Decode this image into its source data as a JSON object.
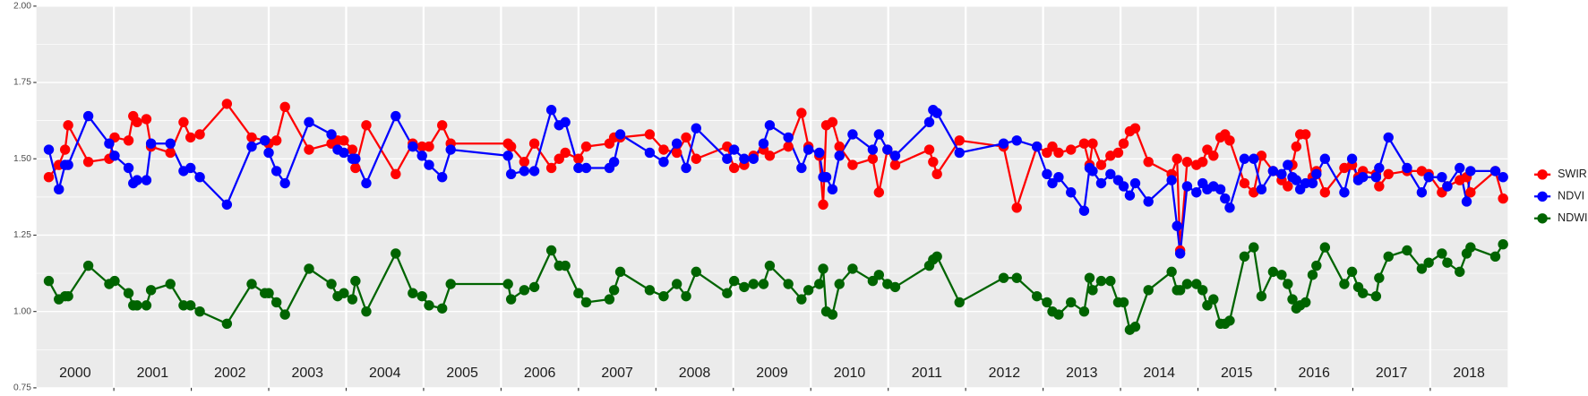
{
  "chart_data": {
    "type": "line",
    "x": [
      2000.16,
      2000.29,
      2000.37,
      2000.41,
      2000.67,
      2000.94,
      2001.01,
      2001.19,
      2001.25,
      2001.3,
      2001.42,
      2001.48,
      2001.73,
      2001.9,
      2001.99,
      2002.11,
      2002.46,
      2002.78,
      2002.95,
      2003.0,
      2003.1,
      2003.21,
      2003.52,
      2003.81,
      2003.89,
      2003.97,
      2004.08,
      2004.12,
      2004.26,
      2004.64,
      2004.86,
      2004.98,
      2005.07,
      2005.24,
      2005.35,
      2006.09,
      2006.13,
      2006.3,
      2006.43,
      2006.65,
      2006.75,
      2006.83,
      2007.0,
      2007.1,
      2007.4,
      2007.46,
      2007.54,
      2007.92,
      2008.1,
      2008.27,
      2008.39,
      2008.52,
      2008.92,
      2009.01,
      2009.14,
      2009.26,
      2009.39,
      2009.47,
      2009.71,
      2009.88,
      2009.97,
      2010.11,
      2010.16,
      2010.2,
      2010.28,
      2010.37,
      2010.54,
      2010.8,
      2010.88,
      2010.99,
      2011.09,
      2011.53,
      2011.58,
      2011.63,
      2011.92,
      2012.49,
      2012.66,
      2012.92,
      2013.05,
      2013.12,
      2013.2,
      2013.36,
      2013.53,
      2013.6,
      2013.64,
      2013.75,
      2013.87,
      2013.97,
      2014.04,
      2014.12,
      2014.19,
      2014.36,
      2014.66,
      2014.73,
      2014.77,
      2014.86,
      2014.98,
      2015.06,
      2015.12,
      2015.2,
      2015.29,
      2015.35,
      2015.41,
      2015.6,
      2015.72,
      2015.82,
      2015.97,
      2016.08,
      2016.16,
      2016.22,
      2016.27,
      2016.32,
      2016.39,
      2016.48,
      2016.53,
      2016.64,
      2016.89,
      2016.99,
      2017.07,
      2017.13,
      2017.3,
      2017.34,
      2017.46,
      2017.7,
      2017.89,
      2017.98,
      2018.15,
      2018.22,
      2018.38,
      2018.47,
      2018.52,
      2018.84,
      2018.94
    ],
    "series": [
      {
        "name": "SWIR",
        "color": "#ff0000",
        "values": [
          1.44,
          1.48,
          1.53,
          1.61,
          1.49,
          1.5,
          1.57,
          1.56,
          1.64,
          1.62,
          1.63,
          1.54,
          1.52,
          1.62,
          1.57,
          1.58,
          1.68,
          1.57,
          1.56,
          1.55,
          1.56,
          1.67,
          1.53,
          1.55,
          1.56,
          1.56,
          1.53,
          1.47,
          1.61,
          1.45,
          1.55,
          1.54,
          1.54,
          1.61,
          1.55,
          1.55,
          1.54,
          1.49,
          1.55,
          1.47,
          1.5,
          1.52,
          1.5,
          1.54,
          1.55,
          1.57,
          1.57,
          1.58,
          1.53,
          1.52,
          1.57,
          1.5,
          1.54,
          1.47,
          1.48,
          1.51,
          1.53,
          1.51,
          1.54,
          1.65,
          1.54,
          1.51,
          1.35,
          1.61,
          1.62,
          1.54,
          1.48,
          1.5,
          1.39,
          1.53,
          1.48,
          1.53,
          1.49,
          1.45,
          1.56,
          1.54,
          1.34,
          1.54,
          1.52,
          1.54,
          1.52,
          1.53,
          1.55,
          1.48,
          1.55,
          1.48,
          1.51,
          1.52,
          1.55,
          1.59,
          1.6,
          1.49,
          1.45,
          1.5,
          1.2,
          1.49,
          1.48,
          1.49,
          1.53,
          1.51,
          1.57,
          1.58,
          1.56,
          1.42,
          1.39,
          1.51,
          1.46,
          1.43,
          1.41,
          1.48,
          1.54,
          1.58,
          1.58,
          1.44,
          1.46,
          1.39,
          1.47,
          1.48,
          1.44,
          1.46,
          1.45,
          1.41,
          1.45,
          1.46,
          1.46,
          1.45,
          1.39,
          1.41,
          1.43,
          1.44,
          1.39,
          1.46,
          1.37
        ]
      },
      {
        "name": "NDVI",
        "color": "#0000ff",
        "values": [
          1.53,
          1.4,
          1.48,
          1.48,
          1.64,
          1.55,
          1.51,
          1.47,
          1.42,
          1.43,
          1.43,
          1.55,
          1.55,
          1.46,
          1.47,
          1.44,
          1.35,
          1.54,
          1.56,
          1.52,
          1.46,
          1.42,
          1.62,
          1.58,
          1.53,
          1.52,
          1.5,
          1.5,
          1.42,
          1.64,
          1.54,
          1.51,
          1.48,
          1.44,
          1.53,
          1.51,
          1.45,
          1.46,
          1.46,
          1.66,
          1.61,
          1.62,
          1.47,
          1.47,
          1.47,
          1.49,
          1.58,
          1.52,
          1.49,
          1.55,
          1.47,
          1.6,
          1.5,
          1.53,
          1.5,
          1.5,
          1.55,
          1.61,
          1.57,
          1.47,
          1.53,
          1.52,
          1.44,
          1.44,
          1.4,
          1.51,
          1.58,
          1.53,
          1.58,
          1.53,
          1.51,
          1.62,
          1.66,
          1.65,
          1.52,
          1.55,
          1.56,
          1.54,
          1.45,
          1.42,
          1.44,
          1.39,
          1.33,
          1.47,
          1.46,
          1.42,
          1.45,
          1.43,
          1.41,
          1.38,
          1.42,
          1.36,
          1.43,
          1.28,
          1.19,
          1.41,
          1.39,
          1.42,
          1.4,
          1.41,
          1.4,
          1.37,
          1.34,
          1.5,
          1.5,
          1.4,
          1.46,
          1.45,
          1.48,
          1.44,
          1.43,
          1.4,
          1.42,
          1.42,
          1.45,
          1.5,
          1.39,
          1.5,
          1.43,
          1.44,
          1.44,
          1.47,
          1.57,
          1.47,
          1.39,
          1.44,
          1.44,
          1.41,
          1.47,
          1.36,
          1.46,
          1.46,
          1.44
        ]
      },
      {
        "name": "NDWI",
        "color": "#006400",
        "values": [
          1.1,
          1.04,
          1.05,
          1.05,
          1.15,
          1.09,
          1.1,
          1.06,
          1.02,
          1.02,
          1.02,
          1.07,
          1.09,
          1.02,
          1.02,
          1.0,
          0.96,
          1.09,
          1.06,
          1.06,
          1.03,
          0.99,
          1.14,
          1.09,
          1.05,
          1.06,
          1.04,
          1.1,
          1.0,
          1.19,
          1.06,
          1.05,
          1.02,
          1.01,
          1.09,
          1.09,
          1.04,
          1.07,
          1.08,
          1.2,
          1.15,
          1.15,
          1.06,
          1.03,
          1.04,
          1.07,
          1.13,
          1.07,
          1.05,
          1.09,
          1.05,
          1.13,
          1.06,
          1.1,
          1.08,
          1.09,
          1.09,
          1.15,
          1.09,
          1.04,
          1.07,
          1.09,
          1.14,
          1.0,
          0.99,
          1.09,
          1.14,
          1.1,
          1.12,
          1.09,
          1.08,
          1.15,
          1.17,
          1.18,
          1.03,
          1.11,
          1.11,
          1.05,
          1.03,
          1.0,
          0.99,
          1.03,
          1.0,
          1.11,
          1.07,
          1.1,
          1.1,
          1.03,
          1.03,
          0.94,
          0.95,
          1.07,
          1.13,
          1.07,
          1.07,
          1.09,
          1.09,
          1.07,
          1.02,
          1.04,
          0.96,
          0.96,
          0.97,
          1.18,
          1.21,
          1.05,
          1.13,
          1.12,
          1.09,
          1.04,
          1.01,
          1.02,
          1.03,
          1.12,
          1.15,
          1.21,
          1.09,
          1.13,
          1.08,
          1.06,
          1.05,
          1.11,
          1.18,
          1.2,
          1.14,
          1.16,
          1.19,
          1.16,
          1.13,
          1.19,
          1.21,
          1.18,
          1.22
        ]
      }
    ],
    "xlim": [
      2000,
      2019
    ],
    "xticks": [
      2001,
      2002,
      2003,
      2004,
      2005,
      2006,
      2007,
      2008,
      2009,
      2010,
      2011,
      2012,
      2013,
      2014,
      2015,
      2016,
      2017,
      2018
    ],
    "year_labels": [
      {
        "value": 2000.5,
        "label": "2000"
      },
      {
        "value": 2001.5,
        "label": "2001"
      },
      {
        "value": 2002.5,
        "label": "2002"
      },
      {
        "value": 2003.5,
        "label": "2003"
      },
      {
        "value": 2004.5,
        "label": "2004"
      },
      {
        "value": 2005.5,
        "label": "2005"
      },
      {
        "value": 2006.5,
        "label": "2006"
      },
      {
        "value": 2007.5,
        "label": "2007"
      },
      {
        "value": 2008.5,
        "label": "2008"
      },
      {
        "value": 2009.5,
        "label": "2009"
      },
      {
        "value": 2010.5,
        "label": "2010"
      },
      {
        "value": 2011.5,
        "label": "2011"
      },
      {
        "value": 2012.5,
        "label": "2012"
      },
      {
        "value": 2013.5,
        "label": "2013"
      },
      {
        "value": 2014.5,
        "label": "2014"
      },
      {
        "value": 2015.5,
        "label": "2015"
      },
      {
        "value": 2016.5,
        "label": "2016"
      },
      {
        "value": 2017.5,
        "label": "2017"
      },
      {
        "value": 2018.5,
        "label": "2018"
      }
    ],
    "ylim": [
      0.75,
      2
    ],
    "yticks": [
      {
        "value": 0.75,
        "label": "0.75"
      },
      {
        "value": 1,
        "label": "1.00"
      },
      {
        "value": 1.25,
        "label": "1.25"
      },
      {
        "value": 1.5,
        "label": "1.50"
      },
      {
        "value": 1.75,
        "label": "1.75"
      },
      {
        "value": 2,
        "label": "2.00"
      }
    ],
    "y_minor_grid": [
      0.875,
      1.125,
      1.375,
      1.625,
      1.875
    ],
    "grid": true,
    "legend": "right"
  }
}
